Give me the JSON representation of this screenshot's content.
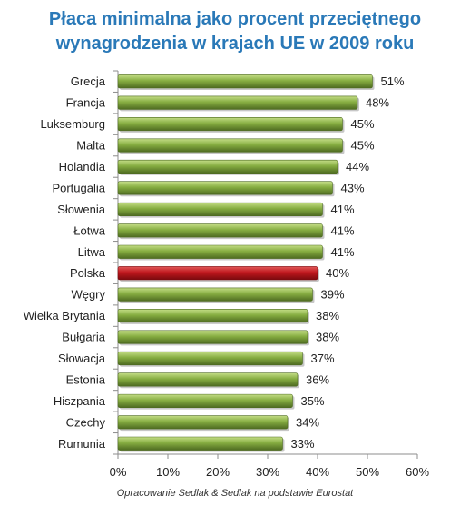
{
  "chart_data": {
    "type": "bar",
    "orientation": "horizontal",
    "title": "Płaca minimalna jako procent przeciętnego wynagrodzenia w krajach UE w 2009 roku",
    "title_lines": [
      "Płaca minimalna jako procent przeciętnego",
      "wynagrodzenia w krajach UE w 2009 roku"
    ],
    "categories": [
      "Grecja",
      "Francja",
      "Luksemburg",
      "Malta",
      "Holandia",
      "Portugalia",
      "Słowenia",
      "Łotwa",
      "Litwa",
      "Polska",
      "Węgry",
      "Wielka Brytania",
      "Bułgaria",
      "Słowacja",
      "Estonia",
      "Hiszpania",
      "Czechy",
      "Rumunia"
    ],
    "values": [
      51,
      48,
      45,
      45,
      44,
      43,
      41,
      41,
      41,
      40,
      39,
      38,
      38,
      37,
      36,
      35,
      34,
      33
    ],
    "value_labels": [
      "51%",
      "48%",
      "45%",
      "45%",
      "44%",
      "43%",
      "41%",
      "41%",
      "41%",
      "40%",
      "39%",
      "38%",
      "38%",
      "37%",
      "36%",
      "35%",
      "34%",
      "33%"
    ],
    "highlight": "Polska",
    "xlim": [
      0,
      60
    ],
    "xticks": [
      0,
      10,
      20,
      30,
      40,
      50,
      60
    ],
    "xtick_labels": [
      "0%",
      "10%",
      "20%",
      "30%",
      "40%",
      "50%",
      "60%"
    ],
    "grid": false,
    "legend": "none",
    "colors": {
      "bar": "#7ea33c",
      "bar_dark": "#4e6b21",
      "highlight": "#c0171d",
      "highlight_dark": "#7a0a0e",
      "title": "#2a79b8"
    },
    "source": "Opracowanie Sedlak & Sedlak na podstawie Eurostat"
  }
}
